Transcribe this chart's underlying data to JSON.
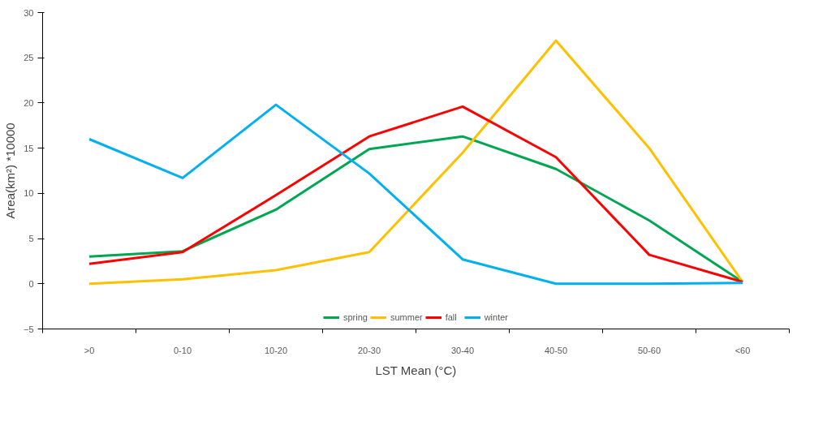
{
  "chart_data": {
    "type": "line",
    "xlabel": "LST Mean (°C)",
    "ylabel": "Area(km²) *10000",
    "categories": [
      ">0",
      "0-10",
      "10-20",
      "20-30",
      "30-40",
      "40-50",
      "50-60",
      "<60"
    ],
    "series": [
      {
        "name": "spring",
        "color": "#00a650",
        "values": [
          3,
          3.6,
          8.2,
          14.9,
          16.3,
          12.7,
          7,
          0.2
        ]
      },
      {
        "name": "summer",
        "color": "#ffc000",
        "values": [
          0,
          0.5,
          1.5,
          3.5,
          14.5,
          26.9,
          15,
          0.2
        ]
      },
      {
        "name": "fall",
        "color": "#ff0000",
        "values": [
          2.2,
          3.5,
          9.8,
          16.3,
          19.6,
          14,
          3.2,
          0.2
        ]
      },
      {
        "name": "winter",
        "color": "#00b0f0",
        "values": [
          16,
          11.7,
          19.8,
          12.2,
          2.7,
          0,
          0,
          0.1
        ]
      }
    ],
    "ylim": [
      -5,
      30
    ],
    "yticks": [
      -5,
      0,
      5,
      10,
      15,
      20,
      25,
      30
    ],
    "grid": false,
    "legend": "bottom",
    "line_style": "solid",
    "marker": "none"
  }
}
